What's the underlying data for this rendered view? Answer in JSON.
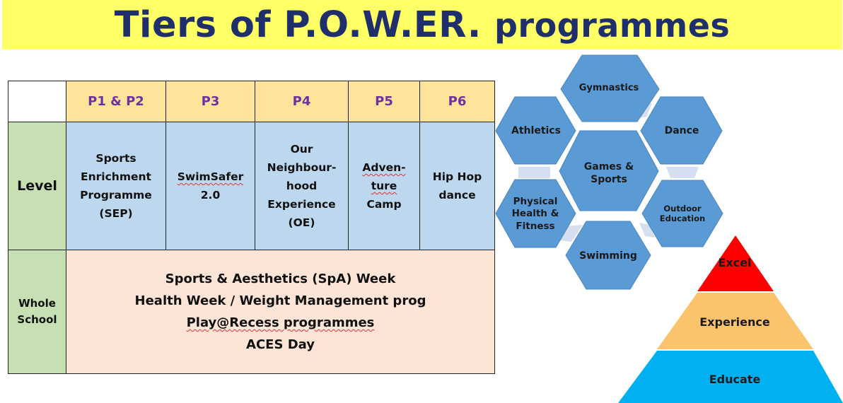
{
  "title": {
    "main": "Tiers of P.O.W.ER.",
    "sub": "programmes"
  },
  "table": {
    "headers": [
      "P1 & P2",
      "P3",
      "P4",
      "P5",
      "P6"
    ],
    "level_label": "Level",
    "level_cells": [
      [
        "Sports",
        "Enrichment",
        "Programme",
        "(SEP)"
      ],
      [
        "SwimSafer",
        "2.0"
      ],
      [
        "Our",
        "Neighbour-",
        "hood",
        "Experience",
        "(OE)"
      ],
      [
        "Adven-",
        "ture",
        "Camp"
      ],
      [
        "Hip Hop",
        "dance"
      ]
    ],
    "whole_school_label": [
      "Whole",
      "School"
    ],
    "whole_school_items": [
      "Sports & Aesthetics (SpA) Week",
      "Health Week / Weight Management prog",
      "Play@Recess programmes",
      "ACES Day"
    ]
  },
  "hexagons": {
    "fill_color": "#5b9bd5",
    "connector_color": "#d6dff0",
    "items": [
      {
        "label": [
          "Gymnastics"
        ]
      },
      {
        "label": [
          "Athletics"
        ]
      },
      {
        "label": [
          "Dance"
        ]
      },
      {
        "label": [
          "Games &",
          "Sports"
        ]
      },
      {
        "label": [
          "Physical",
          "Health &",
          "Fitness"
        ]
      },
      {
        "label": [
          "Outdoor",
          "Education"
        ]
      },
      {
        "label": [
          "Swimming"
        ]
      }
    ]
  },
  "pyramid": {
    "tiers": [
      {
        "label": "Excel",
        "color": "#ff0000"
      },
      {
        "label": "Experience",
        "color": "#fbc36b"
      },
      {
        "label": "Educate",
        "color": "#00b0f0"
      }
    ]
  }
}
